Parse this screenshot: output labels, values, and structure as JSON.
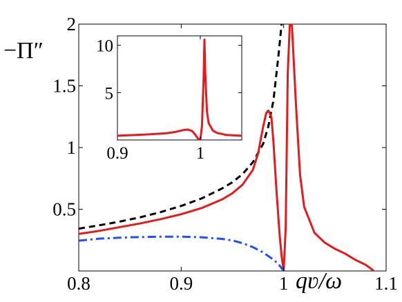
{
  "chart_data": [
    {
      "type": "line",
      "ylabel": "−Π″",
      "xlabel": "qʋ/ω",
      "xlim": [
        0.8,
        1.1
      ],
      "ylim": [
        0,
        2
      ],
      "x_ticks": [
        0.8,
        0.9,
        1,
        1.1
      ],
      "x_tick_labels": [
        "0.8",
        "0.9",
        "1",
        "1.1"
      ],
      "y_ticks": [
        0.5,
        1,
        1.5,
        2
      ],
      "y_tick_labels": [
        "0.5",
        "1",
        "1.5",
        "2"
      ],
      "grid": false,
      "series": [
        {
          "style": "dashed",
          "color": "#000000",
          "x": [
            0.8,
            0.82,
            0.84,
            0.86,
            0.88,
            0.9,
            0.92,
            0.94,
            0.95,
            0.96,
            0.97,
            0.98,
            0.985,
            0.99,
            0.995,
            0.998
          ],
          "y": [
            0.343,
            0.37,
            0.4,
            0.435,
            0.477,
            0.527,
            0.588,
            0.669,
            0.719,
            0.786,
            0.882,
            1.03,
            1.17,
            1.38,
            1.75,
            2.0
          ]
        },
        {
          "style": "solid",
          "color": "#e41a1c",
          "x": [
            0.8,
            0.82,
            0.84,
            0.86,
            0.88,
            0.9,
            0.92,
            0.94,
            0.95,
            0.96,
            0.97,
            0.975,
            0.98,
            0.983,
            0.985,
            0.988,
            0.99,
            0.993,
            0.996,
            0.998,
            1.0,
            1.002,
            1.004,
            1.006,
            1.008,
            1.012,
            1.016,
            1.02,
            1.03,
            1.04,
            1.05,
            1.06,
            1.07,
            1.08,
            1.085,
            1.088
          ],
          "y": [
            0.3,
            0.325,
            0.355,
            0.385,
            0.42,
            0.46,
            0.51,
            0.58,
            0.63,
            0.7,
            0.82,
            0.95,
            1.17,
            1.28,
            1.3,
            1.25,
            1.05,
            0.65,
            0.3,
            0.12,
            0.0,
            0.35,
            1.6,
            2.0,
            2.0,
            1.35,
            0.78,
            0.52,
            0.31,
            0.23,
            0.18,
            0.14,
            0.09,
            0.05,
            0.02,
            0.0
          ]
        },
        {
          "style": "dash-dot",
          "color": "#1f4fff",
          "x": [
            0.8,
            0.82,
            0.85,
            0.88,
            0.9,
            0.92,
            0.94,
            0.95,
            0.96,
            0.97,
            0.98,
            0.99,
            0.995,
            1.0
          ],
          "y": [
            0.245,
            0.262,
            0.273,
            0.278,
            0.278,
            0.273,
            0.26,
            0.247,
            0.225,
            0.193,
            0.15,
            0.092,
            0.055,
            0.0
          ]
        }
      ]
    },
    {
      "type": "line",
      "xlim": [
        0.9,
        1.05
      ],
      "ylim": [
        0,
        11
      ],
      "x_ticks": [
        0.9,
        1
      ],
      "x_tick_labels": [
        "0.9",
        "1"
      ],
      "y_ticks": [
        5,
        10
      ],
      "y_tick_labels": [
        "5",
        "10"
      ],
      "grid": false,
      "series": [
        {
          "style": "solid",
          "color": "#e41a1c",
          "x": [
            0.9,
            0.92,
            0.94,
            0.96,
            0.97,
            0.98,
            0.985,
            0.99,
            0.994,
            0.997,
            1.0,
            1.002,
            1.004,
            1.005,
            1.006,
            1.008,
            1.01,
            1.015,
            1.02,
            1.03,
            1.04,
            1.05
          ],
          "y": [
            0.45,
            0.52,
            0.6,
            0.72,
            0.85,
            1.05,
            1.1,
            0.95,
            0.55,
            0.15,
            0.0,
            1.5,
            6.5,
            10.6,
            7.0,
            3.0,
            1.8,
            1.0,
            0.75,
            0.55,
            0.48,
            0.45
          ]
        }
      ]
    }
  ]
}
